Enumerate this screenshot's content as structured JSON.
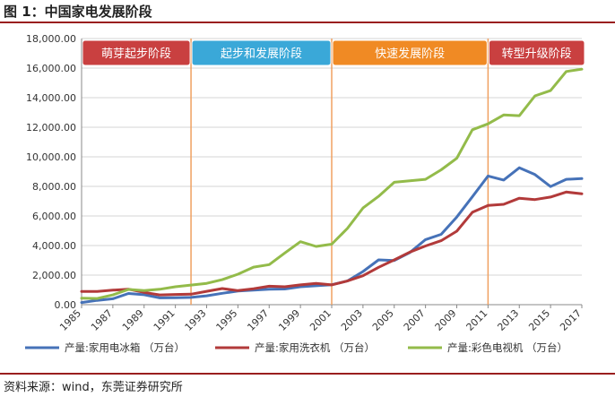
{
  "figure_title": "图 1：中国家电发展阶段",
  "source_note": "资料来源：wind，东莞证券研究所",
  "colors": {
    "fridge": "#4672b8",
    "washer": "#b23a3a",
    "tv": "#93bb4a",
    "divider": "#f0a060",
    "rule": "#9a1f1f"
  },
  "chart_data": {
    "type": "line",
    "y_ticks": [
      "0.00",
      "2,000.00",
      "4,000.00",
      "6,000.00",
      "8,000.00",
      "10,000.00",
      "12,000.00",
      "14,000.00",
      "16,000.00",
      "18,000.00"
    ],
    "ylim": [
      0,
      18000
    ],
    "x_tick_labels": [
      "1985",
      "1987",
      "1989",
      "1991",
      "1993",
      "1995",
      "1997",
      "1999",
      "2001",
      "2003",
      "2005",
      "2007",
      "2009",
      "2011",
      "2013",
      "2015",
      "2017"
    ],
    "x": [
      1985,
      1986,
      1987,
      1988,
      1989,
      1990,
      1991,
      1992,
      1993,
      1994,
      1995,
      1996,
      1997,
      1998,
      1999,
      2000,
      2001,
      2002,
      2003,
      2004,
      2005,
      2006,
      2007,
      2008,
      2009,
      2010,
      2011,
      2012,
      2013,
      2014,
      2015,
      2016,
      2017
    ],
    "xlim": [
      1985,
      2017
    ],
    "stages": [
      {
        "label": "萌芽起步阶段",
        "from": 1985,
        "to": 1992,
        "color": "#c94040"
      },
      {
        "label": "起步和发展阶段",
        "from": 1992,
        "to": 2001,
        "color": "#3aa8d8"
      },
      {
        "label": "快速发展阶段",
        "from": 2001,
        "to": 2011,
        "color": "#f08a24"
      },
      {
        "label": "转型升级阶段",
        "from": 2011,
        "to": 2017.6,
        "color": "#c94040"
      }
    ],
    "dividers": [
      1992,
      2001,
      2011
    ],
    "series": [
      {
        "name": "产量:家用电冰箱 （万台）",
        "color_key": "fridge",
        "values": [
          145,
          290,
          400,
          760,
          670,
          460,
          470,
          490,
          600,
          770,
          920,
          980,
          1040,
          1060,
          1210,
          1280,
          1350,
          1600,
          2240,
          3030,
          2990,
          3530,
          4400,
          4760,
          5930,
          7300,
          8700,
          8430,
          9260,
          8800,
          7990,
          8480,
          8530
        ]
      },
      {
        "name": "产量:家用洗衣机 （万台）",
        "color_key": "washer",
        "values": [
          890,
          890,
          980,
          1050,
          830,
          660,
          690,
          710,
          900,
          1090,
          950,
          1080,
          1250,
          1210,
          1340,
          1440,
          1340,
          1600,
          1960,
          2530,
          3030,
          3560,
          3970,
          4330,
          4970,
          6250,
          6710,
          6790,
          7200,
          7110,
          7280,
          7620,
          7500
        ]
      },
      {
        "name": "产量:彩色电视机 （万台）",
        "color_key": "tv",
        "values": [
          440,
          420,
          660,
          1030,
          950,
          1040,
          1210,
          1330,
          1440,
          1690,
          2060,
          2540,
          2710,
          3500,
          4260,
          3940,
          4090,
          5150,
          6540,
          7330,
          8280,
          8380,
          8480,
          9120,
          9900,
          11830,
          12230,
          12830,
          12780,
          14120,
          14480,
          15770,
          15930
        ]
      }
    ]
  }
}
